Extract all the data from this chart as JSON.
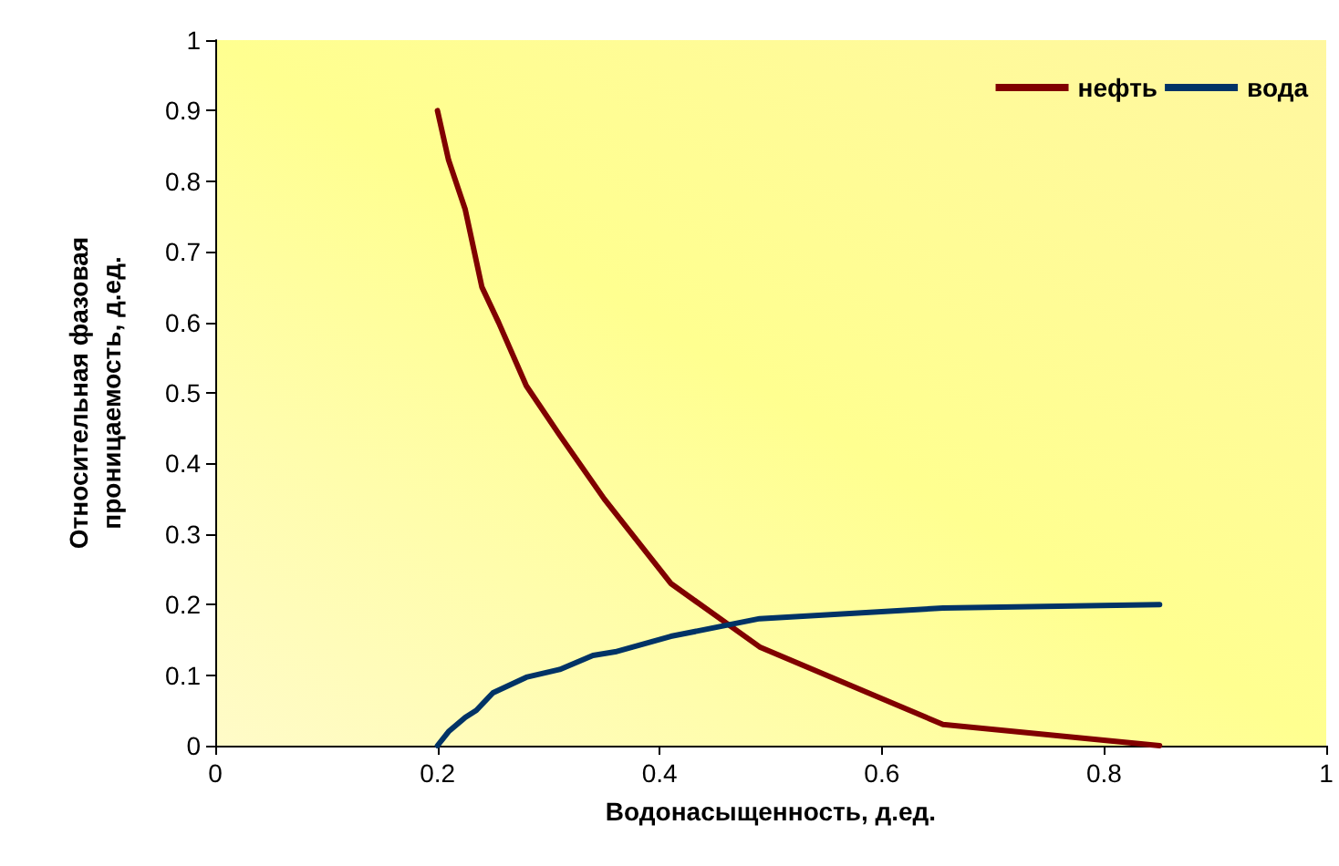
{
  "chart_data": {
    "type": "line",
    "xlabel": "Водонасыщенность, д.ед.",
    "ylabel": "Относительная фазовая\nпроницаемость, д.ед.",
    "xlim": [
      0,
      1
    ],
    "xticks": [
      0,
      0.2,
      0.4,
      0.6,
      0.8,
      1
    ],
    "ylim": [
      0,
      1
    ],
    "yticks": [
      0,
      0.1,
      0.2,
      0.3,
      0.4,
      0.5,
      0.6,
      0.7,
      0.8,
      0.9,
      1
    ],
    "grid": false,
    "legend": "top right",
    "marker": "none",
    "line_style": "solid",
    "series": [
      {
        "name": "нефть",
        "color": "#800000",
        "x": [
          0.2,
          0.21,
          0.225,
          0.24,
          0.255,
          0.28,
          0.31,
          0.35,
          0.37,
          0.41,
          0.49,
          0.655,
          0.85
        ],
        "values": [
          0.9,
          0.83,
          0.76,
          0.65,
          0.6,
          0.51,
          0.44,
          0.35,
          0.31,
          0.23,
          0.14,
          0.03,
          0.0
        ]
      },
      {
        "name": "вода",
        "color": "#003366",
        "x": [
          0.2,
          0.21,
          0.225,
          0.235,
          0.25,
          0.28,
          0.31,
          0.34,
          0.36,
          0.41,
          0.49,
          0.655,
          0.85
        ],
        "values": [
          0.0,
          0.02,
          0.04,
          0.05,
          0.075,
          0.097,
          0.108,
          0.128,
          0.133,
          0.155,
          0.18,
          0.195,
          0.2
        ]
      }
    ]
  }
}
